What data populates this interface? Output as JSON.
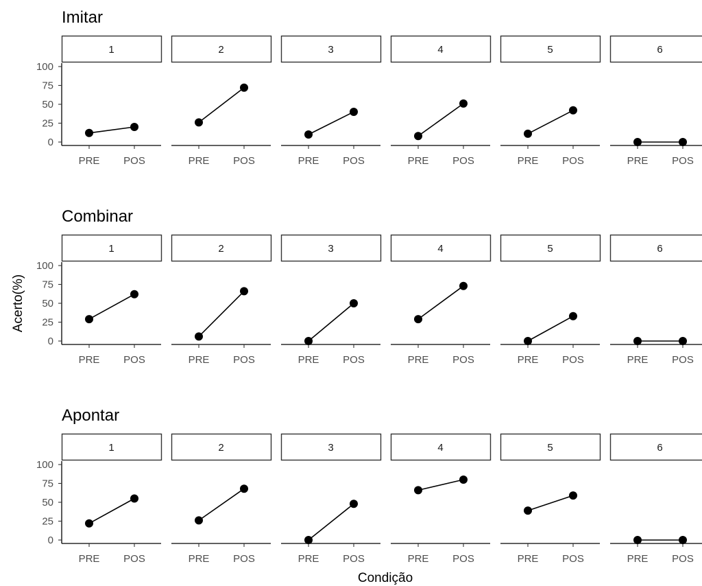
{
  "chart_data": {
    "type": "line",
    "ylabel": "Acerto(%)",
    "xlabel": "Condição",
    "categories": [
      "PRE",
      "POS"
    ],
    "ylim": [
      0,
      100
    ],
    "yticks": [
      0,
      25,
      50,
      75,
      100
    ],
    "grid": false,
    "line_color": "#000000",
    "rows": [
      {
        "title": "Imitar",
        "panels": [
          {
            "label": "1",
            "values": [
              12,
              20
            ]
          },
          {
            "label": "2",
            "values": [
              26,
              72
            ]
          },
          {
            "label": "3",
            "values": [
              10,
              40
            ]
          },
          {
            "label": "4",
            "values": [
              8,
              51
            ]
          },
          {
            "label": "5",
            "values": [
              11,
              42
            ]
          },
          {
            "label": "6",
            "values": [
              0,
              0
            ]
          }
        ]
      },
      {
        "title": "Combinar",
        "panels": [
          {
            "label": "1",
            "values": [
              29,
              62
            ]
          },
          {
            "label": "2",
            "values": [
              6,
              66
            ]
          },
          {
            "label": "3",
            "values": [
              0,
              50
            ]
          },
          {
            "label": "4",
            "values": [
              29,
              73
            ]
          },
          {
            "label": "5",
            "values": [
              0,
              33
            ]
          },
          {
            "label": "6",
            "values": [
              0,
              0
            ]
          }
        ]
      },
      {
        "title": "Apontar",
        "panels": [
          {
            "label": "1",
            "values": [
              22,
              55
            ]
          },
          {
            "label": "2",
            "values": [
              26,
              68
            ]
          },
          {
            "label": "3",
            "values": [
              0,
              48
            ]
          },
          {
            "label": "4",
            "values": [
              66,
              80
            ]
          },
          {
            "label": "5",
            "values": [
              39,
              59
            ]
          },
          {
            "label": "6",
            "values": [
              0,
              0
            ]
          }
        ]
      }
    ]
  }
}
